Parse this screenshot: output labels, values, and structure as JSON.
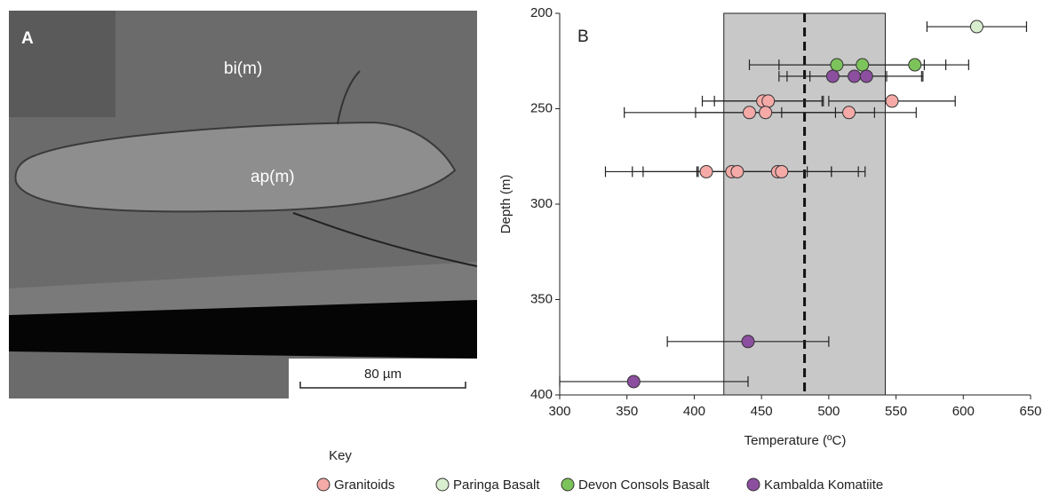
{
  "panel_a": {
    "label": "A",
    "annotations": [
      "bi(m)",
      "ap(m)"
    ],
    "scale_bar": "80 µm"
  },
  "chart_data": {
    "type": "scatter",
    "panel_label": "B",
    "x_label": "Temperature (ºC)",
    "y_label": "Depth (m)",
    "xlim": [
      300,
      650
    ],
    "xticks": [
      300,
      350,
      400,
      450,
      500,
      550,
      600,
      650
    ],
    "ylim": [
      400,
      200
    ],
    "yticks": [
      200,
      250,
      300,
      350,
      400
    ],
    "shaded_range": [
      422,
      542
    ],
    "reference_line": 482,
    "legend_title": "Key",
    "series": [
      {
        "name": "Granitoids",
        "color": "#f5aaa8",
        "x": [
          451,
          455,
          547,
          441,
          453,
          515,
          409,
          428,
          432,
          462,
          465
        ],
        "values": [
          246,
          246,
          246,
          252,
          252,
          252,
          283,
          283,
          283,
          283,
          283
        ],
        "xerr": [
          45,
          40,
          47,
          93,
          52,
          50,
          75,
          74,
          70,
          60,
          62
        ]
      },
      {
        "name": "Paringa Basalt",
        "color": "#d9edcf",
        "x": [
          610
        ],
        "values": [
          207
        ],
        "xerr": [
          37
        ]
      },
      {
        "name": "Devon Consols Basalt",
        "color": "#7dc35b",
        "x": [
          506,
          525,
          564
        ],
        "values": [
          227,
          227,
          227
        ],
        "xerr": [
          65,
          62,
          40
        ]
      },
      {
        "name": "Kambalda Komatiite",
        "color": "#8c4e9f",
        "x": [
          503,
          519,
          528,
          440,
          355
        ],
        "values": [
          233,
          233,
          233,
          372,
          393
        ],
        "xerr": [
          40,
          50,
          42,
          60,
          85
        ]
      }
    ]
  }
}
